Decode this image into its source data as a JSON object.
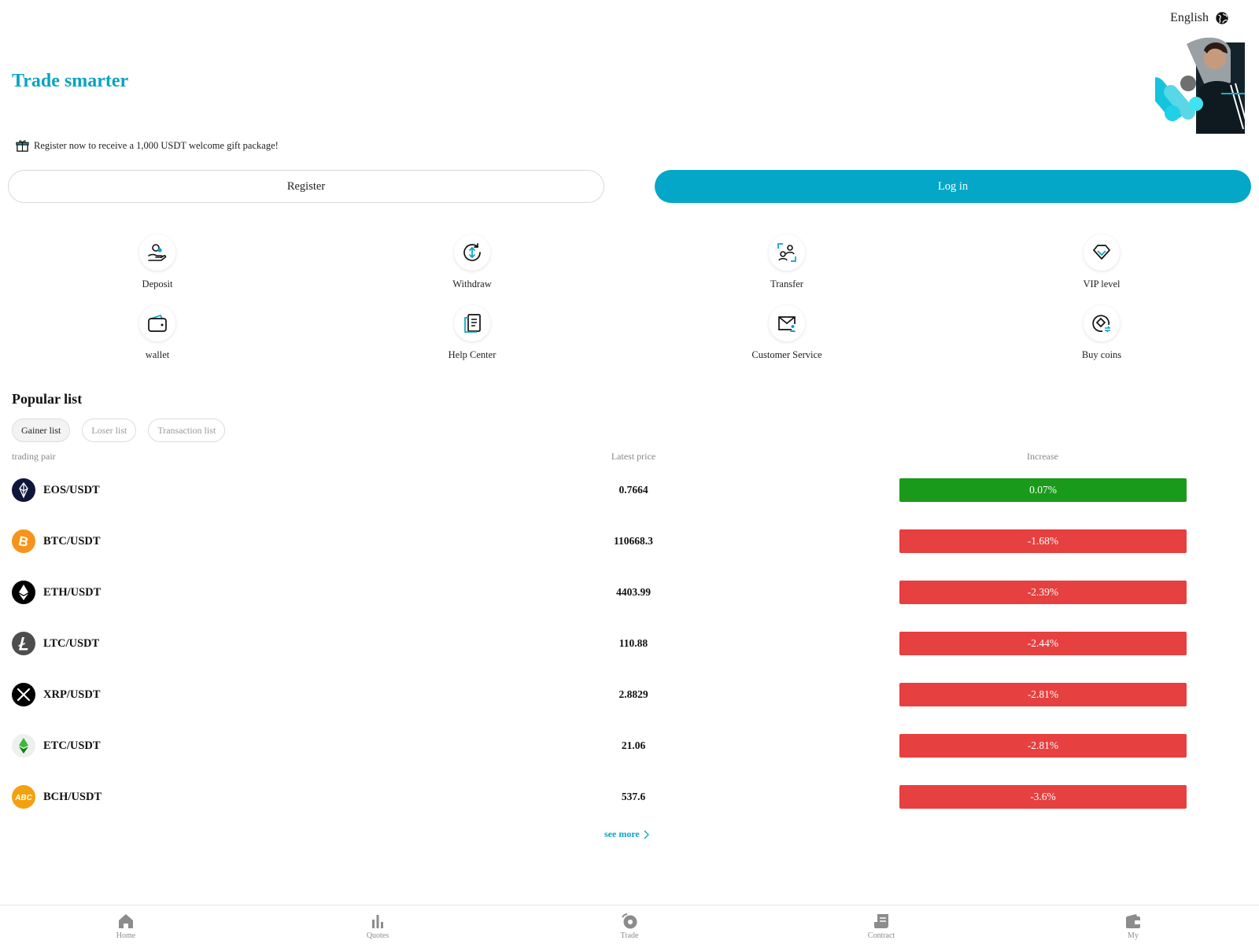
{
  "header": {
    "language": "English",
    "title": "Trade smarter"
  },
  "promo": {
    "text": "Register now to receive a 1,000 USDT welcome gift package!"
  },
  "auth": {
    "register_label": "Register",
    "login_label": "Log in"
  },
  "actions": [
    {
      "label": "Deposit",
      "icon": "deposit-icon"
    },
    {
      "label": "Withdraw",
      "icon": "withdraw-icon"
    },
    {
      "label": "Transfer",
      "icon": "transfer-icon"
    },
    {
      "label": "VIP level",
      "icon": "diamond-icon"
    },
    {
      "label": "wallet",
      "icon": "wallet-icon"
    },
    {
      "label": "Help Center",
      "icon": "help-book-icon"
    },
    {
      "label": "Customer Service",
      "icon": "mail-service-icon"
    },
    {
      "label": "Buy coins",
      "icon": "buy-coins-icon"
    }
  ],
  "popular": {
    "title": "Popular list",
    "tabs": [
      "Gainer list",
      "Loser list",
      "Transaction list"
    ],
    "columns": {
      "pair": "trading pair",
      "price": "Latest price",
      "change": "Increase"
    },
    "rows": [
      {
        "pair": "EOS/USDT",
        "price": "0.7664",
        "change": "0.07%",
        "direction": "up",
        "coin": "eos-icon"
      },
      {
        "pair": "BTC/USDT",
        "price": "110668.3",
        "change": "-1.68%",
        "direction": "down",
        "coin": "btc-icon"
      },
      {
        "pair": "ETH/USDT",
        "price": "4403.99",
        "change": "-2.39%",
        "direction": "down",
        "coin": "eth-icon"
      },
      {
        "pair": "LTC/USDT",
        "price": "110.88",
        "change": "-2.44%",
        "direction": "down",
        "coin": "ltc-icon"
      },
      {
        "pair": "XRP/USDT",
        "price": "2.8829",
        "change": "-2.81%",
        "direction": "down",
        "coin": "xrp-icon"
      },
      {
        "pair": "ETC/USDT",
        "price": "21.06",
        "change": "-2.81%",
        "direction": "down",
        "coin": "etc-icon"
      },
      {
        "pair": "BCH/USDT",
        "price": "537.6",
        "change": "-3.6%",
        "direction": "down",
        "coin": "bch-icon"
      }
    ],
    "see_more": "see more"
  },
  "tabbar": [
    {
      "label": "Home",
      "icon": "home-icon"
    },
    {
      "label": "Quotes",
      "icon": "bar-chart-icon"
    },
    {
      "label": "Trade",
      "icon": "trade-icon"
    },
    {
      "label": "Contract",
      "icon": "contract-icon"
    },
    {
      "label": "My",
      "icon": "wallet-icon"
    }
  ],
  "colors": {
    "accent": "#04a7c7",
    "up": "#1a9a1a",
    "down": "#e64040"
  },
  "logo_text": "ABC"
}
